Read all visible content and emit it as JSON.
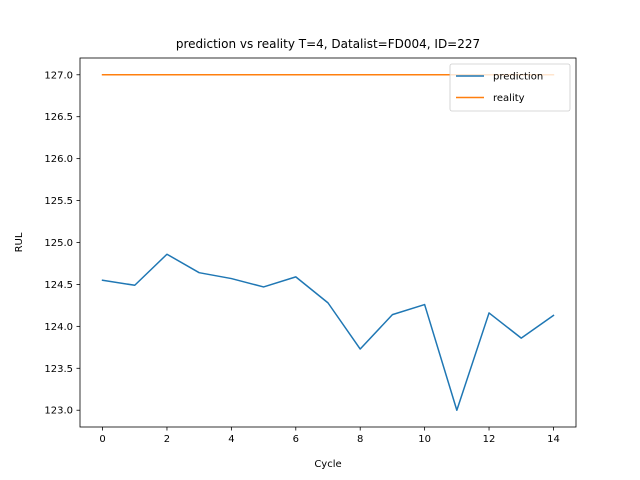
{
  "chart_data": {
    "type": "line",
    "title": "prediction vs reality T=4, Datalist=FD004, ID=227",
    "xlabel": "Cycle",
    "ylabel": "RUL",
    "xlim": [
      -0.7,
      14.7
    ],
    "ylim": [
      122.8,
      127.2
    ],
    "xticks": [
      0,
      2,
      4,
      6,
      8,
      10,
      12,
      14
    ],
    "xtick_labels": [
      "0",
      "2",
      "4",
      "6",
      "8",
      "10",
      "12",
      "14"
    ],
    "yticks": [
      123.0,
      123.5,
      124.0,
      124.5,
      125.0,
      125.5,
      126.0,
      126.5,
      127.0
    ],
    "ytick_labels": [
      "123.0",
      "123.5",
      "124.0",
      "124.5",
      "125.0",
      "125.5",
      "126.0",
      "126.5",
      "127.0"
    ],
    "grid": false,
    "legend_position": "top-right",
    "x": [
      0,
      1,
      2,
      3,
      4,
      5,
      6,
      7,
      8,
      9,
      10,
      11,
      12,
      13,
      14
    ],
    "series": [
      {
        "name": "prediction",
        "color": "#1f77b4",
        "values": [
          124.55,
          124.49,
          124.86,
          124.64,
          124.57,
          124.47,
          124.59,
          124.28,
          123.73,
          124.14,
          124.26,
          123.0,
          124.16,
          123.86,
          124.13
        ]
      },
      {
        "name": "reality",
        "color": "#ff7f0e",
        "values": [
          127.0,
          127.0,
          127.0,
          127.0,
          127.0,
          127.0,
          127.0,
          127.0,
          127.0,
          127.0,
          127.0,
          127.0,
          127.0,
          127.0,
          127.0
        ]
      }
    ]
  }
}
